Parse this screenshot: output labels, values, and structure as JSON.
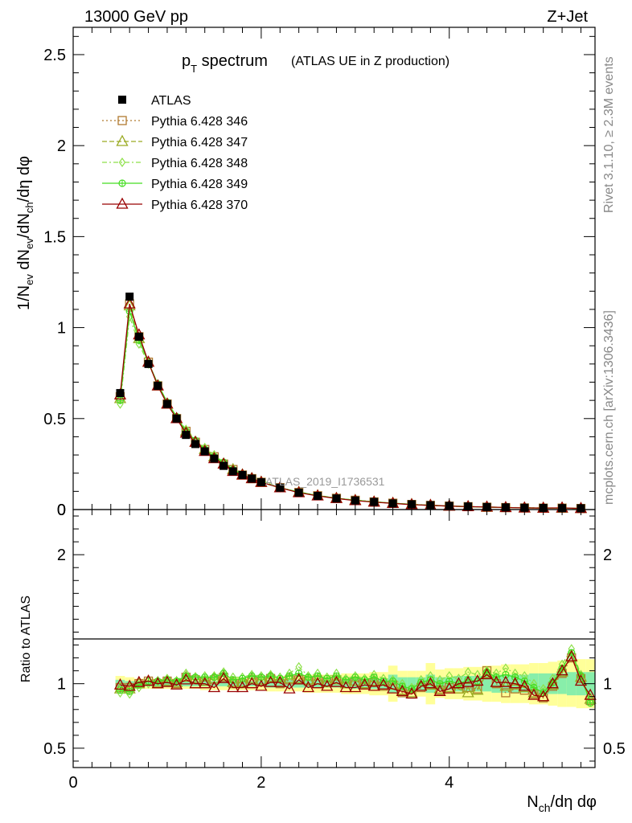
{
  "header": {
    "left": "13000 GeV pp",
    "right": "Z+Jet"
  },
  "plot_title": {
    "main": "p",
    "sub": "T",
    "rest": " spectrum",
    "paren": "(ATLAS UE in Z production)"
  },
  "side_labels": {
    "rivet": "Rivet 3.1.10, ≥ 2.3M events",
    "mcplots": "mcplots.cern.ch [arXiv:1306.3436]"
  },
  "watermark": "ATLAS_2019_I1736531",
  "colors": {
    "data": "#000000",
    "p346": "#b07a2f",
    "p347": "#9aaa22",
    "p348": "#8ee04a",
    "p349": "#44dd22",
    "p370": "#990000",
    "band_yellow": "#ffff99",
    "band_green": "#88eeaa"
  },
  "chart_data": [
    {
      "type": "line",
      "panel": "main",
      "xlabel": "N_ch/dη dφ",
      "ylabel": "1/N_ev dN_ev/dN_ch/dη dφ",
      "xlim": [
        0,
        5.55
      ],
      "ylim": [
        0,
        2.65
      ],
      "yticks": [
        "0",
        "0.5",
        "1",
        "1.5",
        "2",
        "2.5"
      ],
      "legend_position": "top-left",
      "x": [
        0.5,
        0.6,
        0.7,
        0.8,
        0.9,
        1.0,
        1.1,
        1.2,
        1.3,
        1.4,
        1.5,
        1.6,
        1.7,
        1.8,
        1.9,
        2.0,
        2.2,
        2.4,
        2.6,
        2.8,
        3.0,
        3.2,
        3.4,
        3.6,
        3.8,
        4.0,
        4.2,
        4.4,
        4.6,
        4.8,
        5.0,
        5.2,
        5.4
      ],
      "series": [
        {
          "name": "ATLAS",
          "values": [
            0.64,
            1.17,
            0.95,
            0.8,
            0.68,
            0.58,
            0.5,
            0.41,
            0.36,
            0.32,
            0.28,
            0.24,
            0.21,
            0.19,
            0.17,
            0.15,
            0.12,
            0.093,
            0.075,
            0.061,
            0.05,
            0.042,
            0.034,
            0.029,
            0.024,
            0.02,
            0.017,
            0.014,
            0.012,
            0.01,
            0.009,
            0.008,
            0.007
          ]
        },
        {
          "name": "Pythia 6.428 346",
          "values": [
            0.62,
            1.13,
            0.95,
            0.81,
            0.68,
            0.58,
            0.5,
            0.43,
            0.37,
            0.33,
            0.29,
            0.25,
            0.22,
            0.19,
            0.17,
            0.15,
            0.12,
            0.094,
            0.076,
            0.062,
            0.051,
            0.042,
            0.035,
            0.028,
            0.023,
            0.019,
            0.016,
            0.013,
            0.011,
            0.009,
            0.008,
            0.008,
            0.006
          ]
        },
        {
          "name": "Pythia 6.428 347",
          "values": [
            0.61,
            1.12,
            0.94,
            0.81,
            0.68,
            0.58,
            0.5,
            0.43,
            0.37,
            0.33,
            0.29,
            0.25,
            0.22,
            0.19,
            0.17,
            0.15,
            0.12,
            0.095,
            0.076,
            0.062,
            0.051,
            0.042,
            0.035,
            0.028,
            0.023,
            0.019,
            0.016,
            0.013,
            0.011,
            0.009,
            0.008,
            0.008,
            0.006
          ]
        },
        {
          "name": "Pythia 6.428 348",
          "values": [
            0.58,
            1.06,
            0.91,
            0.8,
            0.69,
            0.59,
            0.51,
            0.44,
            0.38,
            0.34,
            0.3,
            0.26,
            0.22,
            0.2,
            0.18,
            0.16,
            0.12,
            0.097,
            0.078,
            0.063,
            0.052,
            0.043,
            0.035,
            0.029,
            0.024,
            0.02,
            0.017,
            0.014,
            0.012,
            0.01,
            0.009,
            0.008,
            0.006
          ]
        },
        {
          "name": "Pythia 6.428 349",
          "values": [
            0.6,
            1.09,
            0.93,
            0.81,
            0.69,
            0.59,
            0.51,
            0.43,
            0.38,
            0.33,
            0.29,
            0.26,
            0.22,
            0.19,
            0.17,
            0.15,
            0.12,
            0.096,
            0.077,
            0.062,
            0.051,
            0.042,
            0.035,
            0.028,
            0.023,
            0.019,
            0.016,
            0.013,
            0.011,
            0.009,
            0.008,
            0.008,
            0.006
          ]
        },
        {
          "name": "Pythia 6.428 370",
          "values": [
            0.63,
            1.13,
            0.96,
            0.81,
            0.68,
            0.58,
            0.5,
            0.42,
            0.37,
            0.32,
            0.28,
            0.25,
            0.21,
            0.19,
            0.17,
            0.15,
            0.12,
            0.093,
            0.075,
            0.061,
            0.049,
            0.041,
            0.034,
            0.027,
            0.023,
            0.019,
            0.016,
            0.014,
            0.011,
            0.009,
            0.008,
            0.009,
            0.006
          ]
        }
      ]
    },
    {
      "type": "line",
      "panel": "ratio",
      "xlabel": "N_ch/dη dφ",
      "ylabel": "Ratio to ATLAS",
      "xlim": [
        0,
        5.55
      ],
      "ylim": [
        0.35,
        2.35
      ],
      "yticks": [
        "0.5",
        "1",
        "2"
      ],
      "xticks": [
        "0",
        "2",
        "4"
      ],
      "x": [
        0.5,
        0.6,
        0.7,
        0.8,
        0.9,
        1.0,
        1.1,
        1.2,
        1.3,
        1.4,
        1.5,
        1.6,
        1.7,
        1.8,
        1.9,
        2.0,
        2.1,
        2.2,
        2.3,
        2.4,
        2.5,
        2.6,
        2.7,
        2.8,
        2.9,
        3.0,
        3.1,
        3.2,
        3.3,
        3.4,
        3.5,
        3.6,
        3.7,
        3.8,
        3.9,
        4.0,
        4.1,
        4.2,
        4.3,
        4.4,
        4.5,
        4.6,
        4.7,
        4.8,
        4.9,
        5.0,
        5.1,
        5.2,
        5.3,
        5.4,
        5.5
      ],
      "band_outer": [
        0.06,
        0.05,
        0.04,
        0.04,
        0.04,
        0.04,
        0.04,
        0.04,
        0.04,
        0.05,
        0.05,
        0.05,
        0.05,
        0.05,
        0.05,
        0.05,
        0.06,
        0.06,
        0.06,
        0.06,
        0.07,
        0.07,
        0.07,
        0.07,
        0.08,
        0.08,
        0.08,
        0.09,
        0.09,
        0.14,
        0.1,
        0.1,
        0.1,
        0.16,
        0.11,
        0.12,
        0.12,
        0.13,
        0.13,
        0.14,
        0.14,
        0.15,
        0.15,
        0.15,
        0.16,
        0.16,
        0.17,
        0.18,
        0.18,
        0.19,
        0.19
      ],
      "band_inner": [
        0.03,
        0.02,
        0.02,
        0.02,
        0.02,
        0.02,
        0.02,
        0.02,
        0.02,
        0.02,
        0.02,
        0.02,
        0.02,
        0.02,
        0.02,
        0.02,
        0.03,
        0.03,
        0.03,
        0.03,
        0.03,
        0.03,
        0.03,
        0.03,
        0.03,
        0.04,
        0.04,
        0.04,
        0.04,
        0.07,
        0.05,
        0.05,
        0.05,
        0.07,
        0.05,
        0.05,
        0.06,
        0.06,
        0.06,
        0.06,
        0.07,
        0.07,
        0.07,
        0.07,
        0.08,
        0.08,
        0.08,
        0.08,
        0.09,
        0.09,
        0.09
      ],
      "series": [
        {
          "name": "Pythia 6.428 346",
          "values": [
            0.97,
            0.97,
            1.0,
            1.02,
            1.0,
            1.02,
            1.0,
            1.05,
            1.03,
            1.02,
            1.03,
            1.05,
            1.0,
            1.0,
            1.03,
            1.02,
            1.04,
            1.0,
            1.03,
            1.03,
            1.02,
            1.03,
            1.01,
            1.03,
            1.0,
            1.02,
            1.0,
            1.01,
            0.98,
            0.99,
            0.93,
            0.92,
            0.97,
            0.99,
            0.95,
            0.97,
            0.96,
            0.97,
            0.96,
            1.1,
            1.0,
            0.93,
            0.96,
            0.95,
            0.92,
            0.89,
            0.98,
            1.08,
            1.2,
            1.04,
            0.87
          ]
        },
        {
          "name": "Pythia 6.428 347",
          "values": [
            0.96,
            0.96,
            1.0,
            1.02,
            1.01,
            1.02,
            1.01,
            1.05,
            1.04,
            1.02,
            1.04,
            1.06,
            1.01,
            1.01,
            1.04,
            1.03,
            1.05,
            1.01,
            1.04,
            1.04,
            1.03,
            1.03,
            1.01,
            1.03,
            1.0,
            1.02,
            1.0,
            1.02,
            0.99,
            0.99,
            0.95,
            0.93,
            0.98,
            0.99,
            0.96,
            0.97,
            0.96,
            0.93,
            0.95,
            1.08,
            1.01,
            0.98,
            0.99,
            0.97,
            0.93,
            0.9,
            0.99,
            1.09,
            1.21,
            1.05,
            0.88
          ]
        },
        {
          "name": "Pythia 6.428 348",
          "values": [
            0.93,
            0.92,
            0.97,
            1.0,
            1.02,
            1.04,
            1.02,
            1.08,
            1.05,
            1.06,
            1.06,
            1.09,
            1.05,
            1.05,
            1.07,
            1.06,
            1.07,
            1.05,
            1.08,
            1.13,
            1.06,
            1.08,
            1.05,
            1.08,
            1.04,
            1.06,
            1.04,
            1.07,
            1.04,
            1.03,
            1.0,
            0.97,
            1.03,
            1.06,
            1.03,
            1.06,
            1.04,
            1.09,
            1.07,
            1.1,
            1.08,
            1.12,
            1.08,
            1.06,
            1.0,
            0.96,
            1.04,
            1.15,
            1.27,
            1.07,
            0.87
          ]
        },
        {
          "name": "Pythia 6.428 349",
          "values": [
            0.95,
            0.94,
            0.99,
            1.02,
            1.02,
            1.03,
            1.02,
            1.06,
            1.05,
            1.05,
            1.05,
            1.08,
            1.03,
            1.04,
            1.06,
            1.05,
            1.06,
            1.04,
            1.06,
            1.08,
            1.05,
            1.06,
            1.04,
            1.06,
            1.03,
            1.05,
            1.03,
            1.05,
            1.02,
            1.02,
            0.98,
            0.96,
            1.01,
            1.03,
            1.0,
            1.02,
            1.0,
            1.03,
            1.02,
            1.09,
            1.05,
            1.07,
            1.05,
            1.02,
            0.97,
            0.93,
            1.01,
            1.12,
            1.24,
            1.06,
            0.85
          ]
        },
        {
          "name": "Pythia 6.428 370",
          "values": [
            0.99,
            0.98,
            1.01,
            1.02,
            1.0,
            1.01,
            0.99,
            1.03,
            1.0,
            1.0,
            0.97,
            1.04,
            0.97,
            0.97,
            1.0,
            0.98,
            1.01,
            1.01,
            0.96,
            1.03,
            0.97,
            1.0,
            0.98,
            1.01,
            0.97,
            0.97,
            0.99,
            0.98,
            0.99,
            0.96,
            0.94,
            0.92,
            0.98,
            1.0,
            0.94,
            0.96,
            1.0,
            1.01,
            1.02,
            1.07,
            1.01,
            1.01,
            1.0,
            0.98,
            0.91,
            0.9,
            1.0,
            1.1,
            1.21,
            1.02,
            0.91
          ]
        }
      ]
    }
  ]
}
